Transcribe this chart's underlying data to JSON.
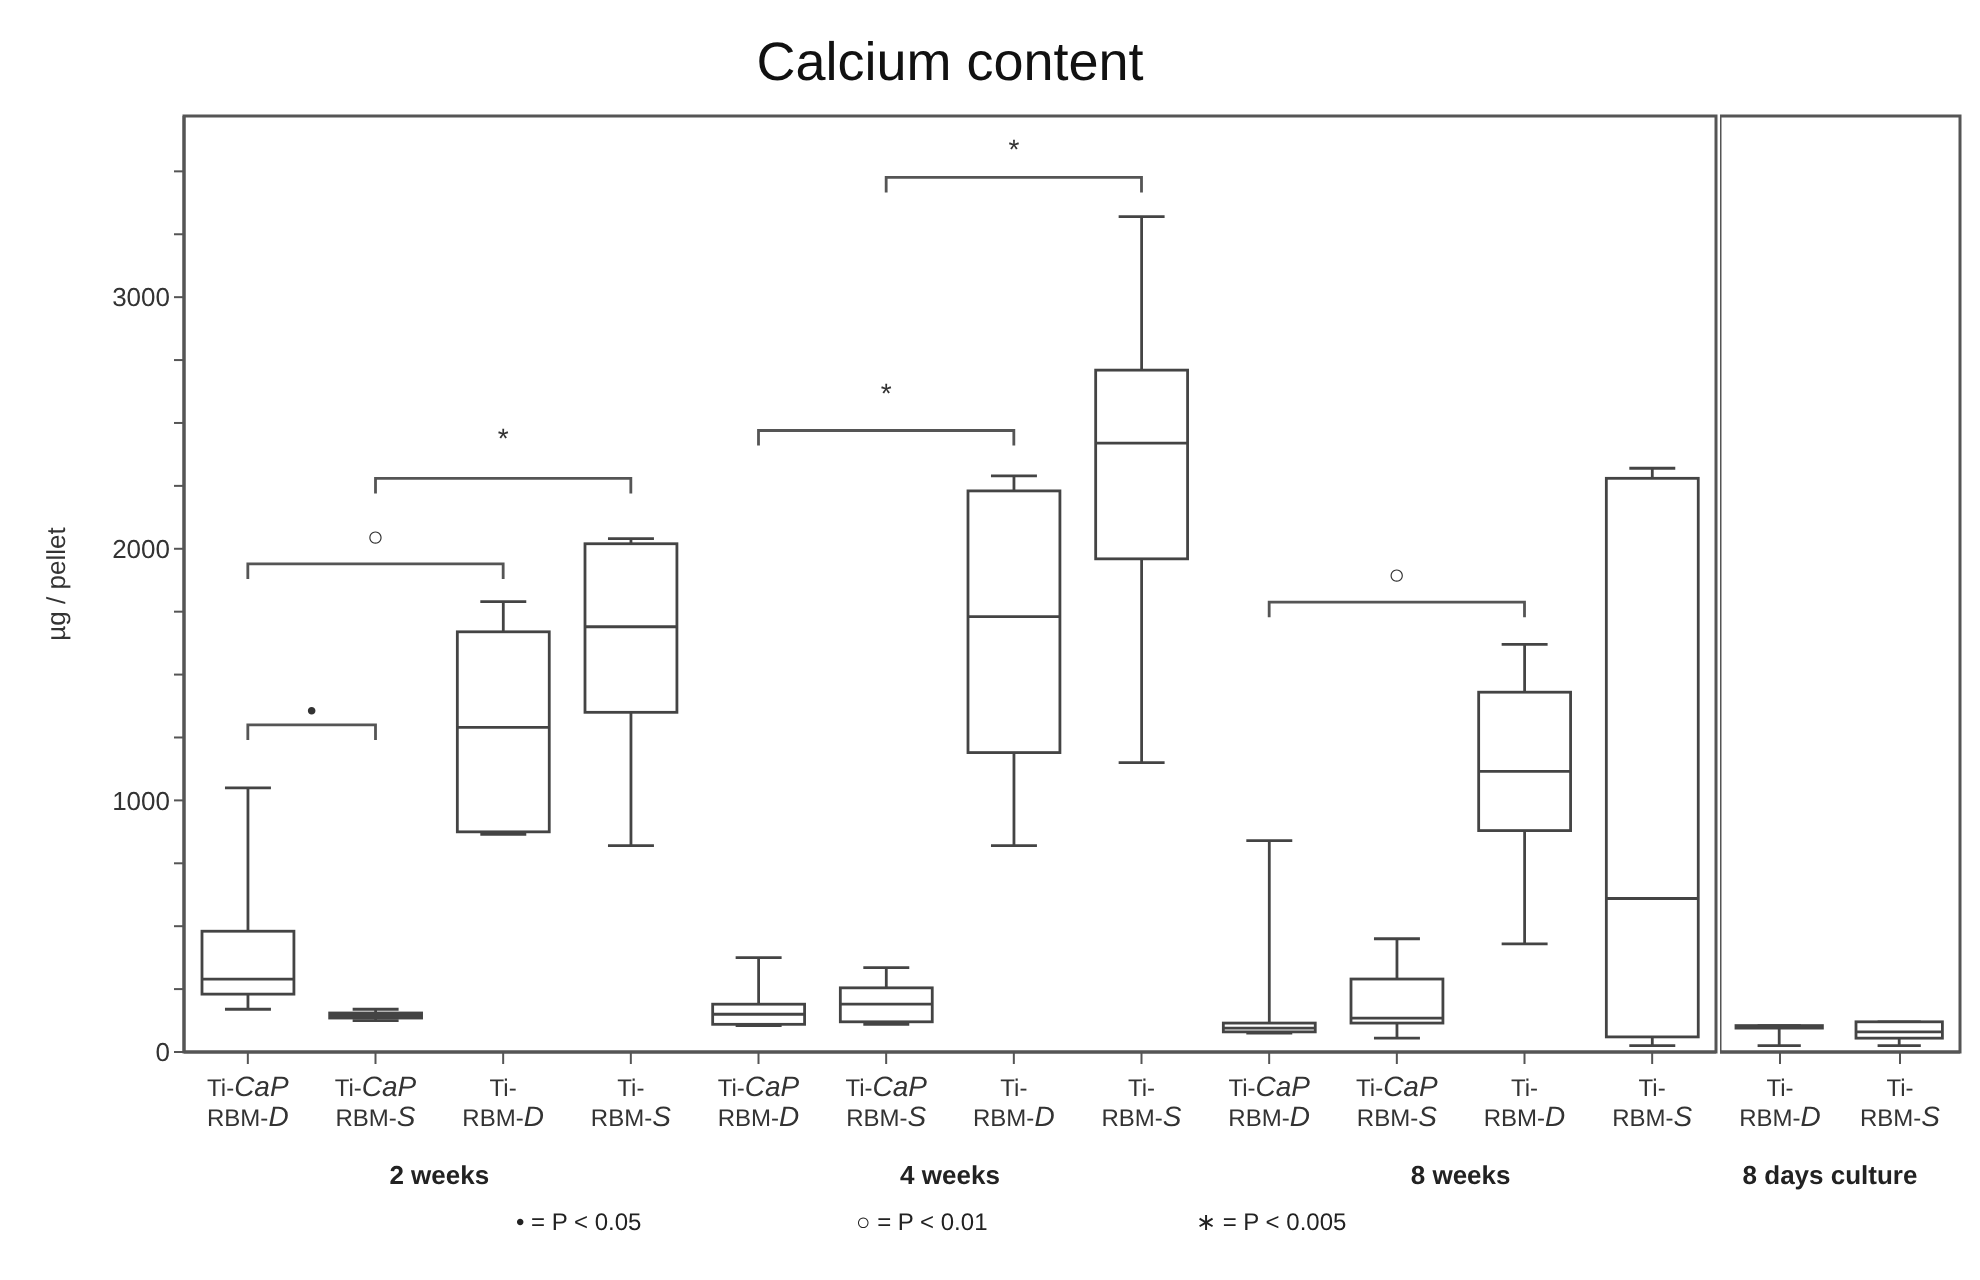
{
  "chart_data": [
    {
      "type": "box",
      "title": "Calcium content",
      "ylabel": "µg / pellet",
      "categories": [
        "Ti-CaP RBM-D",
        "Ti-CaP RBM-S",
        "Ti- RBM-D",
        "Ti- RBM-S",
        "Ti-CaP RBM-D",
        "Ti-CaP RBM-S",
        "Ti- RBM-D",
        "Ti- RBM-S",
        "Ti-CaP RBM-D",
        "Ti-CaP RBM-S",
        "Ti- RBM-D",
        "Ti- RBM-S"
      ],
      "series": [
        {
          "color": "#444444",
          "boxes": [
            {
              "low": 170,
              "q1": 230,
              "median": 290,
              "q3": 480,
              "high": 1050
            },
            {
              "low": 125,
              "q1": 135,
              "median": 145,
              "q3": 155,
              "high": 170
            },
            {
              "low": 865,
              "q1": 875,
              "median": 1290,
              "q3": 1670,
              "high": 1790
            },
            {
              "low": 820,
              "q1": 1350,
              "median": 1690,
              "q3": 2020,
              "high": 2040
            },
            {
              "low": 105,
              "q1": 110,
              "median": 150,
              "q3": 190,
              "high": 375
            },
            {
              "low": 110,
              "q1": 120,
              "median": 190,
              "q3": 255,
              "high": 335
            },
            {
              "low": 820,
              "q1": 1190,
              "median": 1730,
              "q3": 2230,
              "high": 2290
            },
            {
              "low": 1150,
              "q1": 1960,
              "median": 2420,
              "q3": 2710,
              "high": 3320
            },
            {
              "low": 75,
              "q1": 80,
              "median": 95,
              "q3": 115,
              "high": 840
            },
            {
              "low": 55,
              "q1": 115,
              "median": 135,
              "q3": 290,
              "high": 450
            },
            {
              "low": 430,
              "q1": 880,
              "median": 1115,
              "q3": 1430,
              "high": 1620
            },
            {
              "low": 25,
              "q1": 60,
              "median": 610,
              "q3": 2280,
              "high": 2320
            }
          ]
        }
      ],
      "ylim": [
        0,
        3720
      ],
      "yticks": [
        0,
        {
          "value": 250,
          "label": null
        },
        {
          "value": 500,
          "label": null
        },
        {
          "value": 750,
          "label": null
        },
        1000,
        {
          "value": 1250,
          "label": null
        },
        {
          "value": 1500,
          "label": null
        },
        {
          "value": 1750,
          "label": null
        },
        2000,
        {
          "value": 2250,
          "label": null
        },
        {
          "value": 2500,
          "label": null
        },
        {
          "value": 2750,
          "label": null
        },
        3000,
        {
          "value": 3250,
          "label": null
        },
        {
          "value": 3500,
          "label": null
        }
      ],
      "annotations": [
        "•",
        "○",
        "*",
        "*",
        "*",
        "○",
        "2 weeks",
        "4 weeks",
        "8 weeks",
        "• = P < 0.05",
        "○ = P < 0.01",
        "∗ = P < 0.005"
      ]
    },
    {
      "type": "box",
      "xlabel": "8 days culture",
      "categories": [
        "Ti- RBM-D",
        "Ti- RBM-S"
      ],
      "series": [
        {
          "color": "#444444",
          "boxes": [
            {
              "low": 25,
              "q1": 95,
              "median": 100,
              "q3": 105,
              "high": 105
            },
            {
              "low": 25,
              "q1": 55,
              "median": 80,
              "q3": 120,
              "high": 120
            }
          ]
        }
      ],
      "ylim": [
        0,
        3720
      ],
      "tick_labels": "x"
    }
  ]
}
